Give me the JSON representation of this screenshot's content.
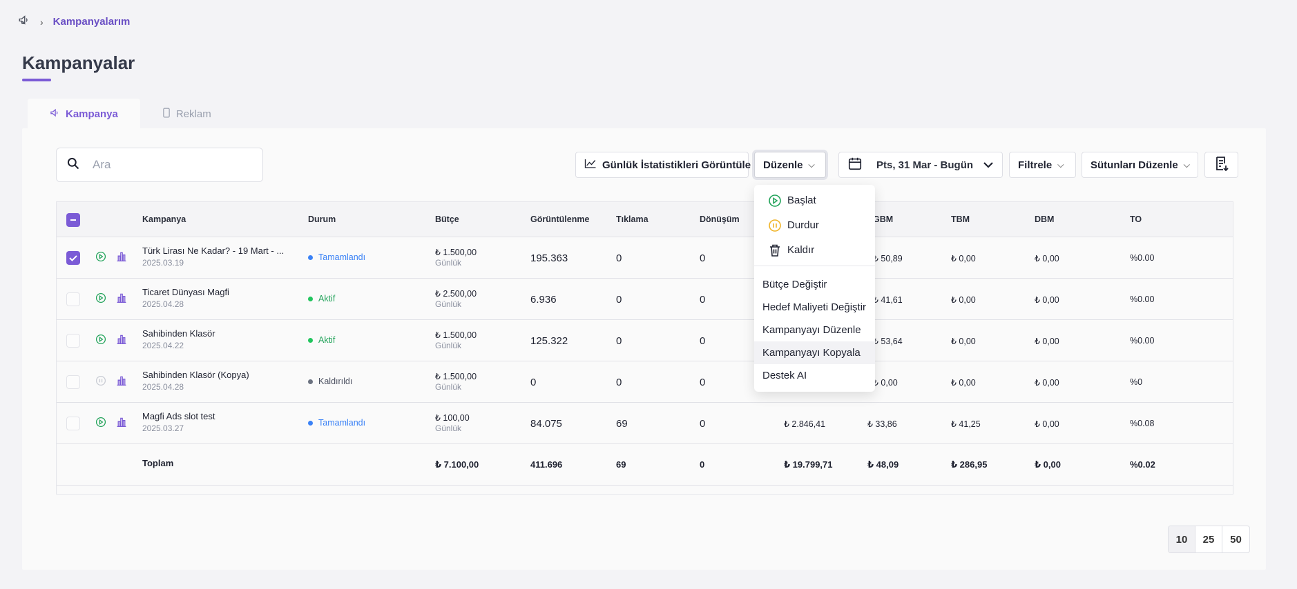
{
  "breadcrumb": {
    "current": "Kampanyalarım"
  },
  "page": {
    "title": "Kampanyalar"
  },
  "tabs": [
    {
      "label": "Kampanya",
      "active": true,
      "icon": "megaphone-icon"
    },
    {
      "label": "Reklam",
      "active": false,
      "icon": "phone-icon"
    }
  ],
  "search": {
    "placeholder": "Ara",
    "value": ""
  },
  "toolbar": {
    "daily_stats_label": "Günlük İstatistikleri Görüntüle",
    "edit_label": "Düzenle",
    "date_range_label": "Pts, 31 Mar - Bugün",
    "filter_label": "Filtrele",
    "columns_label": "Sütunları Düzenle"
  },
  "edit_menu": {
    "actions": [
      {
        "label": "Başlat",
        "icon": "play-circle-icon"
      },
      {
        "label": "Durdur",
        "icon": "pause-circle-icon"
      },
      {
        "label": "Kaldır",
        "icon": "trash-icon"
      }
    ],
    "items": [
      {
        "label": "Bütçe Değiştir"
      },
      {
        "label": "Hedef Maliyeti Değiştir"
      },
      {
        "label": "Kampanyayı Düzenle"
      },
      {
        "label": "Kampanyayı Kopyala",
        "highlighted": true
      },
      {
        "label": "Destek AI"
      }
    ]
  },
  "table": {
    "columns": [
      "Kampanya",
      "Durum",
      "Bütçe",
      "Görüntülenme",
      "Tıklama",
      "Dönüşüm",
      "GBM",
      "TBM",
      "DBM",
      "TO"
    ],
    "rows": [
      {
        "checked": true,
        "name": "Türk Lirası Ne Kadar? - 19 Mart - ...",
        "date": "2025.03.19",
        "status": "Tamamlandı",
        "status_color": "#3b82f6",
        "budget": "₺ 1.500,00",
        "budget_type": "Günlük",
        "impressions": "195.363",
        "clicks": "0",
        "conversions": "0",
        "spend": "",
        "gbm": "₺ 50,89",
        "tbm": "₺ 0,00",
        "dbm": "₺ 0,00",
        "to": "%0.00"
      },
      {
        "checked": false,
        "name": "Ticaret Dünyası Magfi",
        "date": "2025.04.28",
        "status": "Aktif",
        "status_color": "#22c55e",
        "budget": "₺ 2.500,00",
        "budget_type": "Günlük",
        "impressions": "6.936",
        "clicks": "0",
        "conversions": "0",
        "spend": "",
        "gbm": "₺ 41,61",
        "tbm": "₺ 0,00",
        "dbm": "₺ 0,00",
        "to": "%0.00"
      },
      {
        "checked": false,
        "name": "Sahibinden Klasör",
        "date": "2025.04.22",
        "status": "Aktif",
        "status_color": "#22c55e",
        "budget": "₺ 1.500,00",
        "budget_type": "Günlük",
        "impressions": "125.322",
        "clicks": "0",
        "conversions": "0",
        "spend": "",
        "gbm": "₺ 53,64",
        "tbm": "₺ 0,00",
        "dbm": "₺ 0,00",
        "to": "%0.00"
      },
      {
        "checked": false,
        "name": "Sahibinden Klasör (Kopya)",
        "date": "2025.04.28",
        "status": "Kaldırıldı",
        "status_color": "#6b7280",
        "budget": "₺ 1.500,00",
        "budget_type": "Günlük",
        "impressions": "0",
        "clicks": "0",
        "conversions": "0",
        "spend": "",
        "gbm": "₺ 0,00",
        "tbm": "₺ 0,00",
        "dbm": "₺ 0,00",
        "to": "%0"
      },
      {
        "checked": false,
        "name": "Magfi Ads slot test",
        "date": "2025.03.27",
        "status": "Tamamlandı",
        "status_color": "#3b82f6",
        "budget": "₺ 100,00",
        "budget_type": "Günlük",
        "impressions": "84.075",
        "clicks": "69",
        "conversions": "0",
        "spend": "₺ 2.846,41",
        "gbm": "₺ 33,86",
        "tbm": "₺ 41,25",
        "dbm": "₺ 0,00",
        "to": "%0.08"
      }
    ],
    "total": {
      "label": "Toplam",
      "budget": "₺ 7.100,00",
      "impressions": "411.696",
      "clicks": "69",
      "conversions": "0",
      "spend": "₺ 19.799,71",
      "gbm": "₺ 48,09",
      "tbm": "₺ 286,95",
      "dbm": "₺ 0,00",
      "to": "%0.02"
    }
  },
  "pagination": {
    "options": [
      "10",
      "25",
      "50"
    ],
    "selected": "10"
  },
  "colors": {
    "accent": "#7b5bd6",
    "active": "#22c55e",
    "completed": "#3b82f6",
    "removed": "#6b7280",
    "pause": "#f0b429"
  }
}
